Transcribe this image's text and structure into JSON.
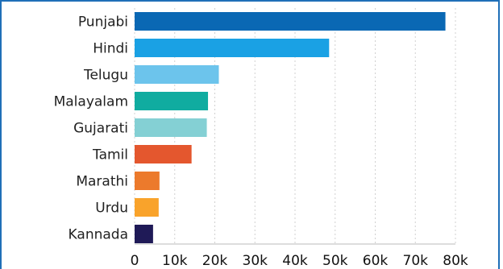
{
  "chart_data": {
    "type": "bar",
    "orientation": "horizontal",
    "categories": [
      "Punjabi",
      "Hindi",
      "Telugu",
      "Malayalam",
      "Gujarati",
      "Tamil",
      "Marathi",
      "Urdu",
      "Kannada"
    ],
    "values": [
      77500,
      48500,
      21000,
      18300,
      18000,
      14200,
      6200,
      6000,
      4600
    ],
    "colors": [
      "#0a68b4",
      "#1aa1e4",
      "#6cc4ec",
      "#10aca0",
      "#84d0d4",
      "#e4572e",
      "#ec7a2c",
      "#f9a32b",
      "#1f1a57"
    ],
    "xlim": [
      0,
      80000
    ],
    "xticks": [
      0,
      10000,
      20000,
      30000,
      40000,
      50000,
      60000,
      70000,
      80000
    ],
    "xtick_labels": [
      "0",
      "10k",
      "20k",
      "30k",
      "40k",
      "50k",
      "60k",
      "70k",
      "80k"
    ],
    "title": "",
    "xlabel": "",
    "ylabel": "",
    "grid": true,
    "frame_color": "#1f6fb8"
  }
}
